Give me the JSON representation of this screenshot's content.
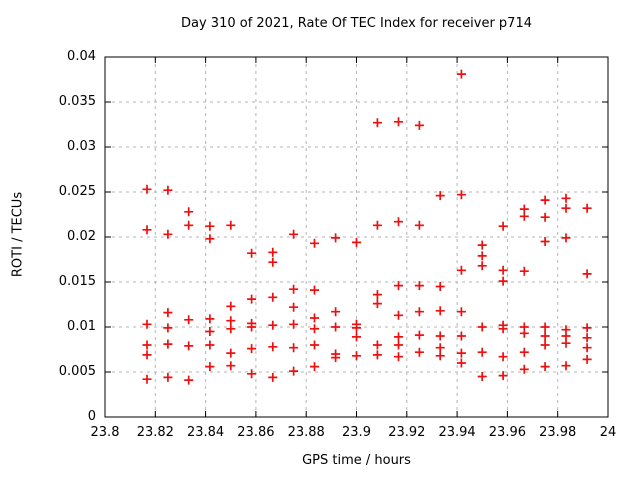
{
  "window": {
    "background": "#ffffff"
  },
  "colors": {
    "marker": "#ee0f0f",
    "grid": "#b5b5b5",
    "axis_border": "#000000",
    "text": "#000000"
  },
  "chart_data": {
    "type": "scatter",
    "title": "Day 310 of 2021, Rate Of TEC Index for receiver p714",
    "xlabel": "GPS time / hours",
    "ylabel": "ROTI / TECUs",
    "xlim": [
      23.8,
      24
    ],
    "ylim": [
      0,
      0.04
    ],
    "x_ticks": [
      23.8,
      23.82,
      23.84,
      23.86,
      23.88,
      23.9,
      23.92,
      23.94,
      23.96,
      23.98,
      24
    ],
    "x_tick_labels": [
      "23.8",
      "23.82",
      "23.84",
      "23.86",
      "23.88",
      "23.9",
      "23.92",
      "23.94",
      "23.96",
      "23.98",
      "24"
    ],
    "y_ticks": [
      0,
      0.005,
      0.01,
      0.015,
      0.02,
      0.025,
      0.03,
      0.035,
      0.04
    ],
    "y_tick_labels": [
      "0",
      "0.005",
      "0.01",
      "0.015",
      "0.02",
      "0.025",
      "0.03",
      "0.035",
      "0.04"
    ],
    "grid": true,
    "legend": "none",
    "marker": "plus",
    "series": [
      {
        "name": "ROTI",
        "points": [
          [
            23.8167,
            0.0253
          ],
          [
            23.8167,
            0.0208
          ],
          [
            23.8167,
            0.0103
          ],
          [
            23.8167,
            0.008
          ],
          [
            23.8167,
            0.0069
          ],
          [
            23.8167,
            0.0042
          ],
          [
            23.825,
            0.0252
          ],
          [
            23.825,
            0.0203
          ],
          [
            23.825,
            0.0116
          ],
          [
            23.825,
            0.0099
          ],
          [
            23.825,
            0.0081
          ],
          [
            23.825,
            0.0044
          ],
          [
            23.8333,
            0.0228
          ],
          [
            23.8333,
            0.0213
          ],
          [
            23.8333,
            0.0108
          ],
          [
            23.8333,
            0.0079
          ],
          [
            23.8333,
            0.0041
          ],
          [
            23.8417,
            0.0212
          ],
          [
            23.8417,
            0.0198
          ],
          [
            23.8417,
            0.0109
          ],
          [
            23.8417,
            0.0095
          ],
          [
            23.8417,
            0.008
          ],
          [
            23.8417,
            0.0056
          ],
          [
            23.85,
            0.0213
          ],
          [
            23.85,
            0.0123
          ],
          [
            23.85,
            0.0107
          ],
          [
            23.85,
            0.0098
          ],
          [
            23.85,
            0.0071
          ],
          [
            23.85,
            0.0057
          ],
          [
            23.8583,
            0.0182
          ],
          [
            23.8583,
            0.0131
          ],
          [
            23.8583,
            0.0104
          ],
          [
            23.8583,
            0.01
          ],
          [
            23.8583,
            0.0076
          ],
          [
            23.8583,
            0.0048
          ],
          [
            23.8667,
            0.0183
          ],
          [
            23.8667,
            0.0172
          ],
          [
            23.8667,
            0.0133
          ],
          [
            23.8667,
            0.0102
          ],
          [
            23.8667,
            0.0078
          ],
          [
            23.8667,
            0.0044
          ],
          [
            23.875,
            0.0203
          ],
          [
            23.875,
            0.0142
          ],
          [
            23.875,
            0.0122
          ],
          [
            23.875,
            0.0103
          ],
          [
            23.875,
            0.0077
          ],
          [
            23.875,
            0.0051
          ],
          [
            23.8833,
            0.0193
          ],
          [
            23.8833,
            0.0141
          ],
          [
            23.8833,
            0.011
          ],
          [
            23.8833,
            0.0098
          ],
          [
            23.8833,
            0.008
          ],
          [
            23.8833,
            0.0056
          ],
          [
            23.8917,
            0.0199
          ],
          [
            23.8917,
            0.0117
          ],
          [
            23.8917,
            0.01
          ],
          [
            23.8917,
            0.007
          ],
          [
            23.8917,
            0.0066
          ],
          [
            23.9,
            0.0194
          ],
          [
            23.9,
            0.0103
          ],
          [
            23.9,
            0.0099
          ],
          [
            23.9,
            0.0089
          ],
          [
            23.9,
            0.0068
          ],
          [
            23.9083,
            0.0327
          ],
          [
            23.9083,
            0.0213
          ],
          [
            23.9083,
            0.0136
          ],
          [
            23.9083,
            0.0126
          ],
          [
            23.9083,
            0.008
          ],
          [
            23.9083,
            0.0069
          ],
          [
            23.9167,
            0.0328
          ],
          [
            23.9167,
            0.0217
          ],
          [
            23.9167,
            0.0146
          ],
          [
            23.9167,
            0.0113
          ],
          [
            23.9167,
            0.0089
          ],
          [
            23.9167,
            0.008
          ],
          [
            23.9167,
            0.0067
          ],
          [
            23.925,
            0.0324
          ],
          [
            23.925,
            0.0213
          ],
          [
            23.925,
            0.0146
          ],
          [
            23.925,
            0.0117
          ],
          [
            23.925,
            0.0091
          ],
          [
            23.925,
            0.0072
          ],
          [
            23.9333,
            0.0246
          ],
          [
            23.9333,
            0.0145
          ],
          [
            23.9333,
            0.0118
          ],
          [
            23.9333,
            0.009
          ],
          [
            23.9333,
            0.0077
          ],
          [
            23.9333,
            0.0068
          ],
          [
            23.9417,
            0.0381
          ],
          [
            23.9417,
            0.0247
          ],
          [
            23.9417,
            0.0163
          ],
          [
            23.9417,
            0.0117
          ],
          [
            23.9417,
            0.009
          ],
          [
            23.9417,
            0.0071
          ],
          [
            23.9417,
            0.006
          ],
          [
            23.95,
            0.0191
          ],
          [
            23.95,
            0.0179
          ],
          [
            23.95,
            0.0168
          ],
          [
            23.95,
            0.01
          ],
          [
            23.95,
            0.0072
          ],
          [
            23.95,
            0.0045
          ],
          [
            23.9583,
            0.0212
          ],
          [
            23.9583,
            0.0163
          ],
          [
            23.9583,
            0.0151
          ],
          [
            23.9583,
            0.0102
          ],
          [
            23.9583,
            0.0098
          ],
          [
            23.9583,
            0.0067
          ],
          [
            23.9583,
            0.0046
          ],
          [
            23.9667,
            0.0231
          ],
          [
            23.9667,
            0.0223
          ],
          [
            23.9667,
            0.0162
          ],
          [
            23.9667,
            0.01
          ],
          [
            23.9667,
            0.0093
          ],
          [
            23.9667,
            0.0072
          ],
          [
            23.9667,
            0.0053
          ],
          [
            23.975,
            0.0241
          ],
          [
            23.975,
            0.0222
          ],
          [
            23.975,
            0.0195
          ],
          [
            23.975,
            0.01
          ],
          [
            23.975,
            0.009
          ],
          [
            23.975,
            0.008
          ],
          [
            23.975,
            0.0056
          ],
          [
            23.9833,
            0.0243
          ],
          [
            23.9833,
            0.0232
          ],
          [
            23.9833,
            0.0199
          ],
          [
            23.9833,
            0.0097
          ],
          [
            23.9833,
            0.009
          ],
          [
            23.9833,
            0.0082
          ],
          [
            23.9833,
            0.0057
          ],
          [
            23.9917,
            0.0232
          ],
          [
            23.9917,
            0.0159
          ],
          [
            23.9917,
            0.0099
          ],
          [
            23.9917,
            0.0088
          ],
          [
            23.9917,
            0.0077
          ],
          [
            23.9917,
            0.0064
          ]
        ]
      }
    ]
  }
}
